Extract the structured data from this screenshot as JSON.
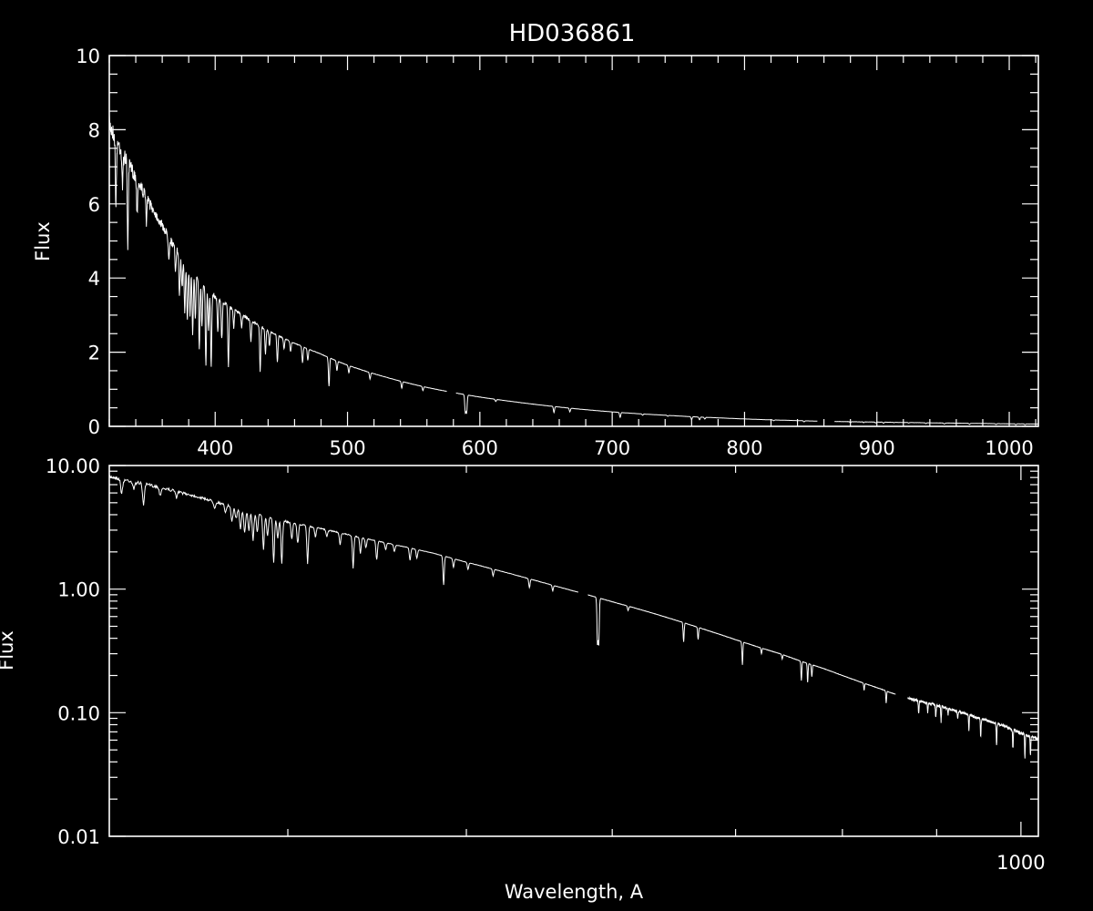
{
  "figure": {
    "title": "HD036861",
    "xlabel": "Wavelength, A",
    "colors": {
      "background": "#000000",
      "foreground": "#ffffff"
    }
  },
  "chart_data": [
    {
      "name": "linear-panel",
      "type": "line",
      "title": "HD036861",
      "xlabel": "",
      "ylabel": "Flux",
      "xlim": [
        320,
        1022
      ],
      "ylim": [
        0,
        10
      ],
      "yscale": "linear",
      "grid": false,
      "x_ticks": [
        {
          "value": 400,
          "label": "400"
        },
        {
          "value": 500,
          "label": "500"
        },
        {
          "value": 600,
          "label": "600"
        },
        {
          "value": 700,
          "label": "700"
        },
        {
          "value": 800,
          "label": "800"
        },
        {
          "value": 900,
          "label": "900"
        },
        {
          "value": 1000,
          "label": "1000"
        }
      ],
      "x_minor_step": 20,
      "y_ticks": [
        {
          "value": 0,
          "label": "0"
        },
        {
          "value": 2,
          "label": "2"
        },
        {
          "value": 4,
          "label": "4"
        },
        {
          "value": 6,
          "label": "6"
        },
        {
          "value": 8,
          "label": "8"
        },
        {
          "value": 10,
          "label": "10"
        }
      ],
      "y_minor_step": 0.5
    },
    {
      "name": "log-panel",
      "type": "line",
      "xlabel": "Wavelength, A",
      "ylabel": "Flux",
      "xlim": [
        320,
        1022
      ],
      "ylim": [
        0.01,
        10
      ],
      "yscale": "log",
      "xscale": "log",
      "grid": false,
      "x_ticks": [
        {
          "value": 1000,
          "label": "1000"
        }
      ],
      "x_minor_ticks": [
        400,
        500,
        600,
        700,
        800,
        900
      ],
      "y_ticks": [
        {
          "value": 0.01,
          "label": "0.01"
        },
        {
          "value": 0.1,
          "label": "0.10"
        },
        {
          "value": 1,
          "label": "1.00"
        },
        {
          "value": 10,
          "label": "10.00"
        }
      ]
    }
  ],
  "spectrum": {
    "continuum": [
      [
        320,
        8.4
      ],
      [
        330,
        7.6
      ],
      [
        340,
        6.9
      ],
      [
        350,
        6.2
      ],
      [
        360,
        5.55
      ],
      [
        370,
        4.9
      ],
      [
        380,
        4.4
      ],
      [
        390,
        3.95
      ],
      [
        400,
        3.55
      ],
      [
        420,
        3.05
      ],
      [
        440,
        2.6
      ],
      [
        460,
        2.25
      ],
      [
        480,
        1.95
      ],
      [
        500,
        1.65
      ],
      [
        520,
        1.42
      ],
      [
        540,
        1.22
      ],
      [
        560,
        1.05
      ],
      [
        580,
        0.91
      ],
      [
        600,
        0.79
      ],
      [
        620,
        0.69
      ],
      [
        640,
        0.6
      ],
      [
        660,
        0.52
      ],
      [
        680,
        0.45
      ],
      [
        700,
        0.39
      ],
      [
        720,
        0.34
      ],
      [
        740,
        0.3
      ],
      [
        760,
        0.26
      ],
      [
        780,
        0.23
      ],
      [
        800,
        0.2
      ],
      [
        820,
        0.175
      ],
      [
        840,
        0.155
      ],
      [
        850,
        0.145
      ],
      [
        870,
        0.13
      ],
      [
        900,
        0.115
      ],
      [
        920,
        0.105
      ],
      [
        950,
        0.09
      ],
      [
        980,
        0.078
      ],
      [
        1000,
        0.068
      ],
      [
        1020,
        0.062
      ]
    ],
    "gaps": [
      [
        575,
        582
      ],
      [
        855,
        868
      ]
    ],
    "absorption_lines": [
      [
        325,
        0.22
      ],
      [
        330,
        0.12
      ],
      [
        334,
        0.3
      ],
      [
        341,
        0.12
      ],
      [
        348,
        0.1
      ],
      [
        365,
        0.1
      ],
      [
        370,
        0.12
      ],
      [
        373,
        0.25
      ],
      [
        375,
        0.18
      ],
      [
        377,
        0.3
      ],
      [
        379,
        0.35
      ],
      [
        381,
        0.3
      ],
      [
        383,
        0.4
      ],
      [
        385,
        0.3
      ],
      [
        388,
        0.45
      ],
      [
        390,
        0.3
      ],
      [
        393,
        0.55
      ],
      [
        395,
        0.3
      ],
      [
        397,
        0.55
      ],
      [
        402,
        0.25
      ],
      [
        405,
        0.3
      ],
      [
        410,
        0.5
      ],
      [
        414,
        0.15
      ],
      [
        420,
        0.12
      ],
      [
        427,
        0.2
      ],
      [
        434,
        0.45
      ],
      [
        438,
        0.25
      ],
      [
        441,
        0.15
      ],
      [
        447,
        0.3
      ],
      [
        452,
        0.12
      ],
      [
        457,
        0.12
      ],
      [
        466,
        0.2
      ],
      [
        470,
        0.15
      ],
      [
        486,
        0.42
      ],
      [
        492,
        0.15
      ],
      [
        501,
        0.12
      ],
      [
        517,
        0.12
      ],
      [
        541,
        0.15
      ],
      [
        557,
        0.1
      ],
      [
        589,
        0.55
      ],
      [
        590,
        0.55
      ],
      [
        612,
        0.08
      ],
      [
        656,
        0.3
      ],
      [
        668,
        0.2
      ],
      [
        706,
        0.35
      ],
      [
        723,
        0.1
      ],
      [
        742,
        0.08
      ],
      [
        760,
        0.3
      ],
      [
        766,
        0.3
      ],
      [
        770,
        0.2
      ],
      [
        822,
        0.12
      ],
      [
        845,
        0.2
      ],
      [
        866,
        0.15
      ],
      [
        880,
        0.2
      ],
      [
        890,
        0.15
      ],
      [
        899,
        0.2
      ],
      [
        905,
        0.25
      ],
      [
        913,
        0.1
      ],
      [
        924,
        0.15
      ],
      [
        937,
        0.25
      ],
      [
        951,
        0.3
      ],
      [
        970,
        0.35
      ],
      [
        990,
        0.3
      ],
      [
        1005,
        0.35
      ],
      [
        1012,
        0.3
      ]
    ]
  }
}
